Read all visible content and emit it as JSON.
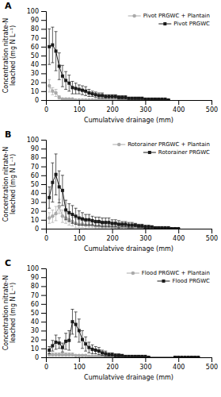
{
  "chart_data": [
    {
      "type": "line",
      "title": "A",
      "xlabel": "Cumulatvive drainage (mm)",
      "ylabel": "Concentration nitrate-N\nleached (mg N L⁻¹)",
      "xlim": [
        0,
        500
      ],
      "ylim": [
        0,
        100
      ],
      "xticks": [
        0,
        100,
        200,
        300,
        400,
        500
      ],
      "yticks": [
        0,
        10,
        20,
        30,
        40,
        50,
        60,
        70,
        80,
        90,
        100
      ],
      "legend": "upper right",
      "grid": false,
      "x": [
        10,
        20,
        30,
        40,
        50,
        60,
        70,
        80,
        90,
        100,
        110,
        120,
        130,
        140,
        150,
        160,
        170,
        180,
        190,
        200,
        210,
        220,
        230,
        240,
        250,
        260,
        270,
        280,
        290,
        300,
        310,
        320,
        330,
        340,
        350,
        360,
        370
      ],
      "series": [
        {
          "name": "Pivot PRGWC + Plantain",
          "color": "#aaaaaa",
          "marker": "circle",
          "values": [
            16,
            10,
            8,
            3,
            1,
            1,
            1,
            1,
            0,
            0,
            0,
            0,
            0,
            0,
            0,
            0,
            0,
            0,
            0,
            0,
            0,
            0,
            0,
            0,
            0,
            0,
            0,
            0,
            0,
            0,
            0,
            0,
            0,
            0,
            0,
            0,
            0
          ],
          "errors": [
            7,
            4,
            4,
            2,
            1,
            1,
            1,
            0,
            0,
            0,
            0,
            0,
            0,
            0,
            0,
            0,
            0,
            0,
            0,
            0,
            0,
            0,
            0,
            0,
            0,
            0,
            0,
            0,
            0,
            0,
            0,
            0,
            0,
            0,
            0,
            0,
            0
          ]
        },
        {
          "name": "Pivot PRGWC",
          "color": "#1a1a1a",
          "marker": "square",
          "values": [
            60,
            62,
            55,
            38,
            27,
            22,
            19,
            14,
            13,
            12,
            11,
            10,
            8,
            7,
            6,
            5,
            5,
            4,
            4,
            4,
            4,
            3,
            3,
            3,
            2,
            2,
            2,
            2,
            2,
            1,
            1,
            1,
            1,
            1,
            1,
            1,
            0
          ],
          "errors": [
            20,
            20,
            22,
            15,
            12,
            10,
            9,
            7,
            6,
            5,
            5,
            5,
            4,
            3,
            3,
            3,
            3,
            2,
            2,
            2,
            2,
            2,
            2,
            2,
            1,
            1,
            1,
            1,
            1,
            1,
            1,
            1,
            0,
            0,
            0,
            0,
            0
          ]
        }
      ]
    },
    {
      "type": "line",
      "title": "B",
      "xlabel": "Cumulatvive drainage (mm)",
      "ylabel": "Concentration nitrate-N\nleached (mg N L⁻¹)",
      "xlim": [
        0,
        500
      ],
      "ylim": [
        0,
        100
      ],
      "xticks": [
        0,
        100,
        200,
        300,
        400,
        500
      ],
      "yticks": [
        0,
        10,
        20,
        30,
        40,
        50,
        60,
        70,
        80,
        90,
        100
      ],
      "legend": "upper right",
      "grid": false,
      "x": [
        10,
        20,
        30,
        40,
        50,
        60,
        70,
        80,
        90,
        100,
        110,
        120,
        130,
        140,
        150,
        160,
        170,
        180,
        190,
        200,
        210,
        220,
        230,
        240,
        250,
        260,
        270,
        280,
        290,
        300,
        310,
        320,
        330,
        340,
        350,
        360,
        370,
        380,
        390,
        400
      ],
      "series": [
        {
          "name": "Rotorainer PRGWC + Plantain",
          "color": "#aaaaaa",
          "marker": "circle",
          "values": [
            12,
            14,
            17,
            25,
            14,
            12,
            10,
            8,
            6,
            5,
            5,
            4,
            4,
            4,
            3,
            3,
            3,
            3,
            3,
            2,
            2,
            2,
            2,
            2,
            1,
            1,
            1,
            1,
            1,
            1,
            0,
            0,
            0,
            0,
            0,
            0,
            0,
            0,
            0,
            0
          ],
          "errors": [
            6,
            7,
            8,
            8,
            7,
            6,
            6,
            5,
            5,
            4,
            4,
            4,
            3,
            3,
            3,
            3,
            3,
            3,
            2,
            2,
            2,
            2,
            2,
            2,
            1,
            1,
            1,
            1,
            1,
            1,
            0,
            0,
            0,
            0,
            0,
            0,
            0,
            0,
            0,
            0
          ]
        },
        {
          "name": "Rotorainer PRGWC",
          "color": "#1a1a1a",
          "marker": "square",
          "values": [
            35,
            52,
            61,
            47,
            43,
            21,
            18,
            16,
            14,
            12,
            11,
            10,
            10,
            9,
            8,
            8,
            7,
            7,
            7,
            6,
            6,
            5,
            5,
            5,
            4,
            4,
            4,
            3,
            3,
            2,
            2,
            2,
            1,
            1,
            1,
            1,
            1,
            0,
            0,
            0
          ],
          "errors": [
            12,
            22,
            23,
            18,
            17,
            11,
            10,
            10,
            9,
            8,
            7,
            6,
            6,
            5,
            5,
            5,
            5,
            5,
            5,
            4,
            4,
            4,
            3,
            3,
            3,
            3,
            2,
            2,
            2,
            2,
            2,
            1,
            1,
            1,
            1,
            0,
            0,
            0,
            0,
            0
          ]
        }
      ]
    },
    {
      "type": "line",
      "title": "C",
      "xlabel": "Cumulatvive drainage (mm)",
      "ylabel": "Concentration nitrate-N\nleached (mg N L⁻¹)",
      "xlim": [
        0,
        500
      ],
      "ylim": [
        0,
        100
      ],
      "xticks": [
        0,
        100,
        200,
        300,
        400,
        500
      ],
      "yticks": [
        0,
        10,
        20,
        30,
        40,
        50,
        60,
        70,
        80,
        90,
        100
      ],
      "legend": "upper right",
      "grid": false,
      "x": [
        10,
        20,
        30,
        40,
        50,
        60,
        70,
        80,
        90,
        100,
        110,
        120,
        130,
        140,
        150,
        160,
        170,
        180,
        190,
        200,
        210,
        220,
        230,
        240,
        250,
        260,
        270,
        280,
        290,
        300,
        310,
        390,
        400,
        410,
        420,
        430,
        440,
        450,
        460
      ],
      "series": [
        {
          "name": "Flood PRGWC + Plantain",
          "color": "#aaaaaa",
          "marker": "circle",
          "values": [
            3,
            3,
            3,
            3,
            3,
            3,
            3,
            3,
            2,
            2,
            2,
            2,
            1,
            1,
            1,
            1,
            1,
            1,
            1,
            1,
            0,
            0,
            0,
            0,
            0,
            0,
            0,
            0,
            0,
            0,
            0,
            0,
            0,
            0,
            0,
            0,
            0,
            0,
            0
          ],
          "errors": [
            2,
            2,
            2,
            2,
            2,
            2,
            2,
            2,
            1,
            1,
            1,
            1,
            1,
            1,
            1,
            1,
            1,
            1,
            1,
            1,
            0,
            0,
            0,
            0,
            0,
            0,
            0,
            0,
            0,
            0,
            0,
            0,
            0,
            0,
            0,
            0,
            0,
            0,
            0
          ]
        },
        {
          "name": "Flood PRGWC",
          "color": "#1a1a1a",
          "marker": "square",
          "values": [
            8,
            13,
            17,
            16,
            11,
            18,
            19,
            40,
            37,
            30,
            20,
            15,
            11,
            9,
            8,
            7,
            5,
            4,
            3,
            3,
            2,
            2,
            2,
            1,
            1,
            1,
            1,
            1,
            1,
            1,
            0,
            0,
            0,
            0,
            0,
            0,
            0,
            0,
            0
          ],
          "errors": [
            4,
            6,
            8,
            6,
            5,
            9,
            11,
            14,
            14,
            13,
            10,
            8,
            6,
            5,
            4,
            4,
            3,
            3,
            2,
            2,
            2,
            2,
            1,
            1,
            1,
            1,
            0,
            0,
            0,
            0,
            0,
            0,
            0,
            0,
            0,
            0,
            0,
            0,
            0
          ]
        }
      ]
    }
  ]
}
